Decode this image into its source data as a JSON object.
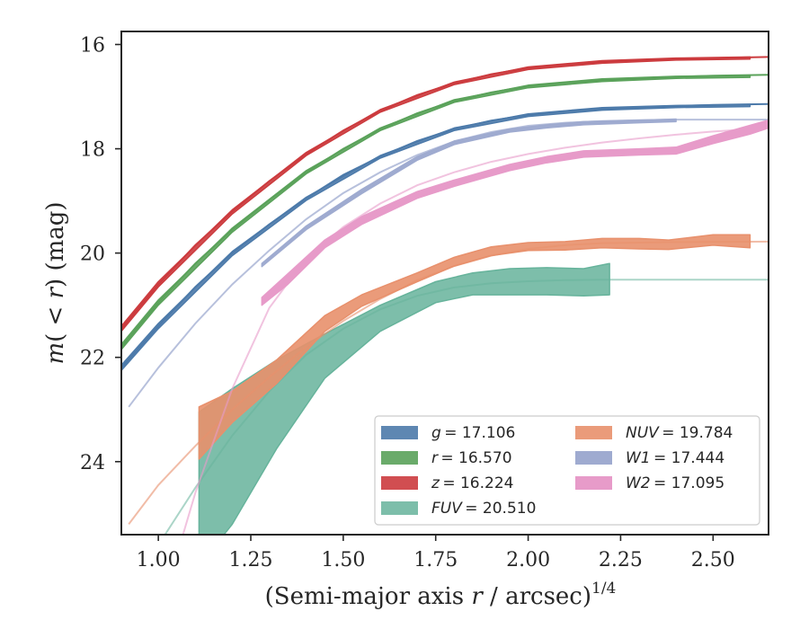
{
  "chart_data": {
    "type": "line",
    "title": "",
    "xlabel": "(Semi-major axis r / arcsec)^{1/4}",
    "xlabel_parts": {
      "base": "(Semi-major axis ",
      "italic": "r",
      "unit": " / arcsec)",
      "exp": "1/4"
    },
    "ylabel": "m(<r) (mag)",
    "ylabel_parts": {
      "m": "m",
      "open": "(",
      "lt": " < ",
      "r": "r",
      "close": ")",
      "unit": " (mag)"
    },
    "xlim": [
      0.9,
      2.65
    ],
    "ylim": [
      25.4,
      15.75
    ],
    "y_inverted": true,
    "xticks": [
      1.0,
      1.25,
      1.5,
      1.75,
      2.0,
      2.25,
      2.5
    ],
    "xtick_labels": [
      "1.00",
      "1.25",
      "1.50",
      "1.75",
      "2.00",
      "2.25",
      "2.50"
    ],
    "yticks": [
      16,
      18,
      20,
      22,
      24
    ],
    "ytick_labels": [
      "16",
      "18",
      "20",
      "22",
      "24"
    ],
    "grid": false,
    "legend_placement": "lower-right",
    "series": [
      {
        "name": "g = 17.106",
        "legend_var": "g",
        "legend_italic": true,
        "legend_val": "= 17.106",
        "color": "#4c7aaa",
        "fill_opacity": 0.9,
        "model_opacity": 1.0,
        "model": [
          [
            0.9,
            22.2
          ],
          [
            1.0,
            21.4
          ],
          [
            1.1,
            20.65
          ],
          [
            1.2,
            20.0
          ],
          [
            1.3,
            19.45
          ],
          [
            1.4,
            18.95
          ],
          [
            1.5,
            18.5
          ],
          [
            1.6,
            18.15
          ],
          [
            1.7,
            17.85
          ],
          [
            1.8,
            17.62
          ],
          [
            1.9,
            17.46
          ],
          [
            2.0,
            17.35
          ],
          [
            2.1,
            17.28
          ],
          [
            2.2,
            17.23
          ],
          [
            2.3,
            17.2
          ],
          [
            2.4,
            17.18
          ],
          [
            2.5,
            17.16
          ],
          [
            2.65,
            17.14
          ]
        ],
        "profile": [
          [
            0.9,
            22.15,
            22.25
          ],
          [
            1.0,
            21.35,
            21.45
          ],
          [
            1.2,
            19.97,
            20.05
          ],
          [
            1.4,
            18.93,
            18.99
          ],
          [
            1.6,
            18.13,
            18.18
          ],
          [
            1.8,
            17.6,
            17.65
          ],
          [
            2.0,
            17.33,
            17.38
          ],
          [
            2.2,
            17.21,
            17.26
          ],
          [
            2.4,
            17.17,
            17.21
          ],
          [
            2.6,
            17.15,
            17.19
          ]
        ]
      },
      {
        "name": "r = 16.570",
        "legend_var": "r",
        "legend_italic": true,
        "legend_val": "= 16.570",
        "color": "#5aa25a",
        "fill_opacity": 0.9,
        "model_opacity": 1.0,
        "model": [
          [
            0.9,
            21.8
          ],
          [
            1.0,
            20.95
          ],
          [
            1.1,
            20.2
          ],
          [
            1.2,
            19.55
          ],
          [
            1.3,
            18.98
          ],
          [
            1.4,
            18.45
          ],
          [
            1.5,
            18.0
          ],
          [
            1.6,
            17.62
          ],
          [
            1.7,
            17.32
          ],
          [
            1.8,
            17.08
          ],
          [
            1.9,
            16.92
          ],
          [
            2.0,
            16.8
          ],
          [
            2.1,
            16.73
          ],
          [
            2.2,
            16.68
          ],
          [
            2.3,
            16.65
          ],
          [
            2.4,
            16.62
          ],
          [
            2.5,
            16.6
          ],
          [
            2.65,
            16.58
          ]
        ],
        "profile": [
          [
            0.9,
            21.75,
            21.85
          ],
          [
            1.0,
            20.9,
            21.0
          ],
          [
            1.2,
            19.52,
            19.6
          ],
          [
            1.4,
            18.42,
            18.48
          ],
          [
            1.6,
            17.6,
            17.65
          ],
          [
            1.8,
            17.06,
            17.11
          ],
          [
            2.0,
            16.78,
            16.83
          ],
          [
            2.2,
            16.66,
            16.71
          ],
          [
            2.4,
            16.61,
            16.65
          ],
          [
            2.6,
            16.59,
            16.63
          ]
        ]
      },
      {
        "name": "z = 16.224",
        "legend_var": "z",
        "legend_italic": true,
        "legend_val": "= 16.224",
        "color": "#cc3b3e",
        "fill_opacity": 0.9,
        "model_opacity": 1.0,
        "model": [
          [
            0.9,
            21.45
          ],
          [
            1.0,
            20.6
          ],
          [
            1.1,
            19.85
          ],
          [
            1.2,
            19.2
          ],
          [
            1.3,
            18.62
          ],
          [
            1.4,
            18.1
          ],
          [
            1.5,
            17.65
          ],
          [
            1.6,
            17.27
          ],
          [
            1.7,
            16.97
          ],
          [
            1.8,
            16.74
          ],
          [
            1.9,
            16.57
          ],
          [
            2.0,
            16.45
          ],
          [
            2.1,
            16.38
          ],
          [
            2.2,
            16.33
          ],
          [
            2.3,
            16.3
          ],
          [
            2.4,
            16.28
          ],
          [
            2.5,
            16.26
          ],
          [
            2.65,
            16.24
          ]
        ],
        "profile": [
          [
            0.9,
            21.4,
            21.5
          ],
          [
            1.0,
            20.55,
            20.65
          ],
          [
            1.2,
            19.17,
            19.25
          ],
          [
            1.4,
            18.07,
            18.13
          ],
          [
            1.6,
            17.25,
            17.3
          ],
          [
            1.8,
            16.72,
            16.77
          ],
          [
            2.0,
            16.43,
            16.48
          ],
          [
            2.2,
            16.31,
            16.36
          ],
          [
            2.4,
            16.26,
            16.3
          ],
          [
            2.6,
            16.24,
            16.28
          ]
        ]
      },
      {
        "name": "FUV = 20.510",
        "legend_var": "FUV",
        "legend_italic": true,
        "legend_val": "= 20.510",
        "color": "#66b39b",
        "fill_opacity": 0.85,
        "model_opacity": 0.55,
        "model": [
          [
            0.9,
            26.8
          ],
          [
            1.0,
            25.6
          ],
          [
            1.1,
            24.5
          ],
          [
            1.2,
            23.5
          ],
          [
            1.3,
            22.65
          ],
          [
            1.4,
            21.95
          ],
          [
            1.5,
            21.45
          ],
          [
            1.6,
            21.08
          ],
          [
            1.7,
            20.82
          ],
          [
            1.8,
            20.66
          ],
          [
            1.9,
            20.58
          ],
          [
            2.0,
            20.54
          ],
          [
            2.1,
            20.52
          ],
          [
            2.2,
            20.51
          ],
          [
            2.4,
            20.51
          ],
          [
            2.65,
            20.51
          ]
        ],
        "profile": [
          [
            1.11,
            23.05,
            26.0
          ],
          [
            1.2,
            22.6,
            25.2
          ],
          [
            1.32,
            22.05,
            23.75
          ],
          [
            1.45,
            21.55,
            22.4
          ],
          [
            1.6,
            21.0,
            21.5
          ],
          [
            1.75,
            20.55,
            20.95
          ],
          [
            1.85,
            20.38,
            20.8
          ],
          [
            1.95,
            20.3,
            20.8
          ],
          [
            2.05,
            20.28,
            20.8
          ],
          [
            2.15,
            20.3,
            20.82
          ],
          [
            2.22,
            20.2,
            20.8
          ]
        ]
      },
      {
        "name": "NUV = 19.784",
        "legend_var": "NUV",
        "legend_italic": true,
        "legend_val": "= 19.784",
        "color": "#e8906c",
        "fill_opacity": 0.9,
        "model_opacity": 0.6,
        "model": [
          [
            0.92,
            25.2
          ],
          [
            1.0,
            24.45
          ],
          [
            1.1,
            23.7
          ],
          [
            1.2,
            23.0
          ],
          [
            1.3,
            22.38
          ],
          [
            1.4,
            21.8
          ],
          [
            1.5,
            21.3
          ],
          [
            1.6,
            20.88
          ],
          [
            1.7,
            20.52
          ],
          [
            1.8,
            20.25
          ],
          [
            1.9,
            20.05
          ],
          [
            2.0,
            19.92
          ],
          [
            2.1,
            19.85
          ],
          [
            2.2,
            19.81
          ],
          [
            2.3,
            19.8
          ],
          [
            2.4,
            19.79
          ],
          [
            2.65,
            19.78
          ]
        ],
        "profile": [
          [
            1.11,
            22.95,
            23.95
          ],
          [
            1.2,
            22.65,
            23.25
          ],
          [
            1.32,
            22.05,
            22.5
          ],
          [
            1.45,
            21.2,
            21.5
          ],
          [
            1.55,
            20.8,
            21.02
          ],
          [
            1.7,
            20.38,
            20.55
          ],
          [
            1.8,
            20.08,
            20.25
          ],
          [
            1.9,
            19.88,
            20.05
          ],
          [
            2.0,
            19.8,
            19.95
          ],
          [
            2.1,
            19.78,
            19.94
          ],
          [
            2.2,
            19.72,
            19.9
          ],
          [
            2.3,
            19.72,
            19.92
          ],
          [
            2.38,
            19.75,
            19.93
          ],
          [
            2.5,
            19.65,
            19.85
          ],
          [
            2.6,
            19.65,
            19.9
          ]
        ]
      },
      {
        "name": "W1 = 17.444",
        "legend_var": "W1",
        "legend_italic": true,
        "legend_val": "= 17.444",
        "color": "#9fabd0",
        "fill_opacity": 1.0,
        "model_opacity": 0.75,
        "model": [
          [
            0.92,
            22.95
          ],
          [
            1.0,
            22.2
          ],
          [
            1.1,
            21.35
          ],
          [
            1.2,
            20.6
          ],
          [
            1.3,
            19.95
          ],
          [
            1.4,
            19.35
          ],
          [
            1.5,
            18.85
          ],
          [
            1.6,
            18.45
          ],
          [
            1.7,
            18.12
          ],
          [
            1.8,
            17.86
          ],
          [
            1.9,
            17.68
          ],
          [
            2.0,
            17.56
          ],
          [
            2.1,
            17.5
          ],
          [
            2.2,
            17.47
          ],
          [
            2.3,
            17.45
          ],
          [
            2.4,
            17.44
          ],
          [
            2.5,
            17.44
          ],
          [
            2.65,
            17.44
          ]
        ],
        "profile": [
          [
            1.28,
            20.2,
            20.26
          ],
          [
            1.4,
            19.48,
            19.55
          ],
          [
            1.55,
            18.78,
            18.86
          ],
          [
            1.7,
            18.15,
            18.22
          ],
          [
            1.8,
            17.85,
            17.92
          ],
          [
            1.95,
            17.62,
            17.68
          ],
          [
            2.05,
            17.54,
            17.6
          ],
          [
            2.15,
            17.48,
            17.54
          ],
          [
            2.3,
            17.45,
            17.5
          ],
          [
            2.4,
            17.43,
            17.48
          ]
        ]
      },
      {
        "name": "W2 = 17.095",
        "legend_var": "W2",
        "legend_italic": true,
        "legend_val": "= 17.095",
        "color": "#e79bc9",
        "fill_opacity": 1.0,
        "model_opacity": 0.6,
        "model": [
          [
            1.0,
            27.0
          ],
          [
            1.1,
            24.6
          ],
          [
            1.2,
            22.6
          ],
          [
            1.3,
            21.05
          ],
          [
            1.4,
            20.1
          ],
          [
            1.5,
            19.5
          ],
          [
            1.6,
            19.05
          ],
          [
            1.7,
            18.7
          ],
          [
            1.8,
            18.45
          ],
          [
            1.9,
            18.25
          ],
          [
            2.0,
            18.1
          ],
          [
            2.1,
            17.98
          ],
          [
            2.2,
            17.88
          ],
          [
            2.3,
            17.8
          ],
          [
            2.4,
            17.73
          ],
          [
            2.5,
            17.67
          ],
          [
            2.65,
            17.6
          ]
        ],
        "profile": [
          [
            1.28,
            20.85,
            21.0
          ],
          [
            1.35,
            20.4,
            20.6
          ],
          [
            1.45,
            19.75,
            19.9
          ],
          [
            1.55,
            19.3,
            19.45
          ],
          [
            1.7,
            18.82,
            18.95
          ],
          [
            1.8,
            18.6,
            18.72
          ],
          [
            1.95,
            18.3,
            18.42
          ],
          [
            2.05,
            18.15,
            18.27
          ],
          [
            2.15,
            18.04,
            18.16
          ],
          [
            2.3,
            18.0,
            18.12
          ],
          [
            2.4,
            17.97,
            18.1
          ],
          [
            2.5,
            17.75,
            17.9
          ],
          [
            2.6,
            17.55,
            17.72
          ],
          [
            2.65,
            17.45,
            17.6
          ]
        ]
      }
    ]
  }
}
